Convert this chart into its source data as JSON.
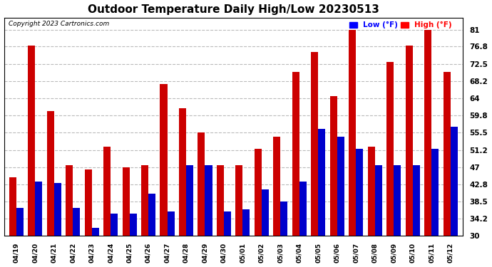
{
  "title": "Outdoor Temperature Daily High/Low 20230513",
  "copyright": "Copyright 2023 Cartronics.com",
  "legend_low_label": "Low (°F)",
  "legend_high_label": "High (°F)",
  "legend_low_color": "#0000ff",
  "legend_high_color": "#ff0000",
  "bar_low_color": "#0000cc",
  "bar_high_color": "#cc0000",
  "background_color": "#ffffff",
  "grid_color": "#bbbbbb",
  "ylim": [
    30.0,
    84.0
  ],
  "yticks": [
    30.0,
    34.2,
    38.5,
    42.8,
    47.0,
    51.2,
    55.5,
    59.8,
    64.0,
    68.2,
    72.5,
    76.8,
    81.0
  ],
  "ybase": 30.0,
  "categories": [
    "04/19",
    "04/20",
    "04/21",
    "04/22",
    "04/23",
    "04/24",
    "04/25",
    "04/26",
    "04/27",
    "04/28",
    "04/29",
    "04/30",
    "05/01",
    "05/02",
    "05/03",
    "05/04",
    "05/05",
    "05/06",
    "05/07",
    "05/08",
    "05/09",
    "05/10",
    "05/11",
    "05/12"
  ],
  "high_values": [
    44.5,
    77.0,
    60.8,
    47.5,
    46.5,
    52.0,
    47.0,
    47.5,
    67.5,
    61.5,
    55.5,
    47.5,
    47.5,
    51.5,
    54.5,
    70.5,
    75.5,
    64.5,
    81.0,
    52.0,
    73.0,
    77.0,
    81.0,
    70.5
  ],
  "low_values": [
    37.0,
    43.5,
    43.0,
    37.0,
    32.0,
    35.5,
    35.5,
    40.5,
    36.0,
    47.5,
    47.5,
    36.0,
    36.5,
    41.5,
    38.5,
    43.5,
    56.5,
    54.5,
    51.5,
    47.5,
    47.5,
    47.5,
    51.5,
    57.0
  ]
}
